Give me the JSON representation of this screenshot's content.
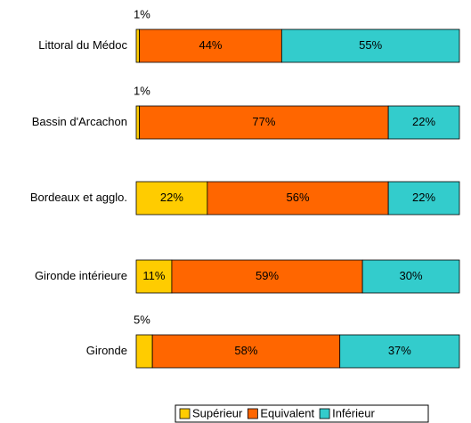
{
  "chart_data": {
    "type": "stacked_barh",
    "categories": [
      "Littoral du Médoc",
      "Bassin d'Arcachon",
      "Bordeaux et agglo.",
      "Gironde intérieure",
      "Gironde"
    ],
    "series": [
      {
        "name": "Supérieur",
        "color": "#ffcc00",
        "values": [
          1,
          1,
          22,
          11,
          5
        ],
        "value_labels": [
          "1%",
          "1%",
          "22%",
          "11%",
          "5%"
        ]
      },
      {
        "name": "Equivalent",
        "color": "#ff6600",
        "values": [
          44,
          77,
          56,
          59,
          58
        ],
        "value_labels": [
          "44%",
          "77%",
          "56%",
          "59%",
          "58%"
        ]
      },
      {
        "name": "Inférieur",
        "color": "#33cccc",
        "values": [
          55,
          22,
          22,
          30,
          37
        ],
        "value_labels": [
          "55%",
          "22%",
          "22%",
          "30%",
          "37%"
        ]
      }
    ]
  }
}
